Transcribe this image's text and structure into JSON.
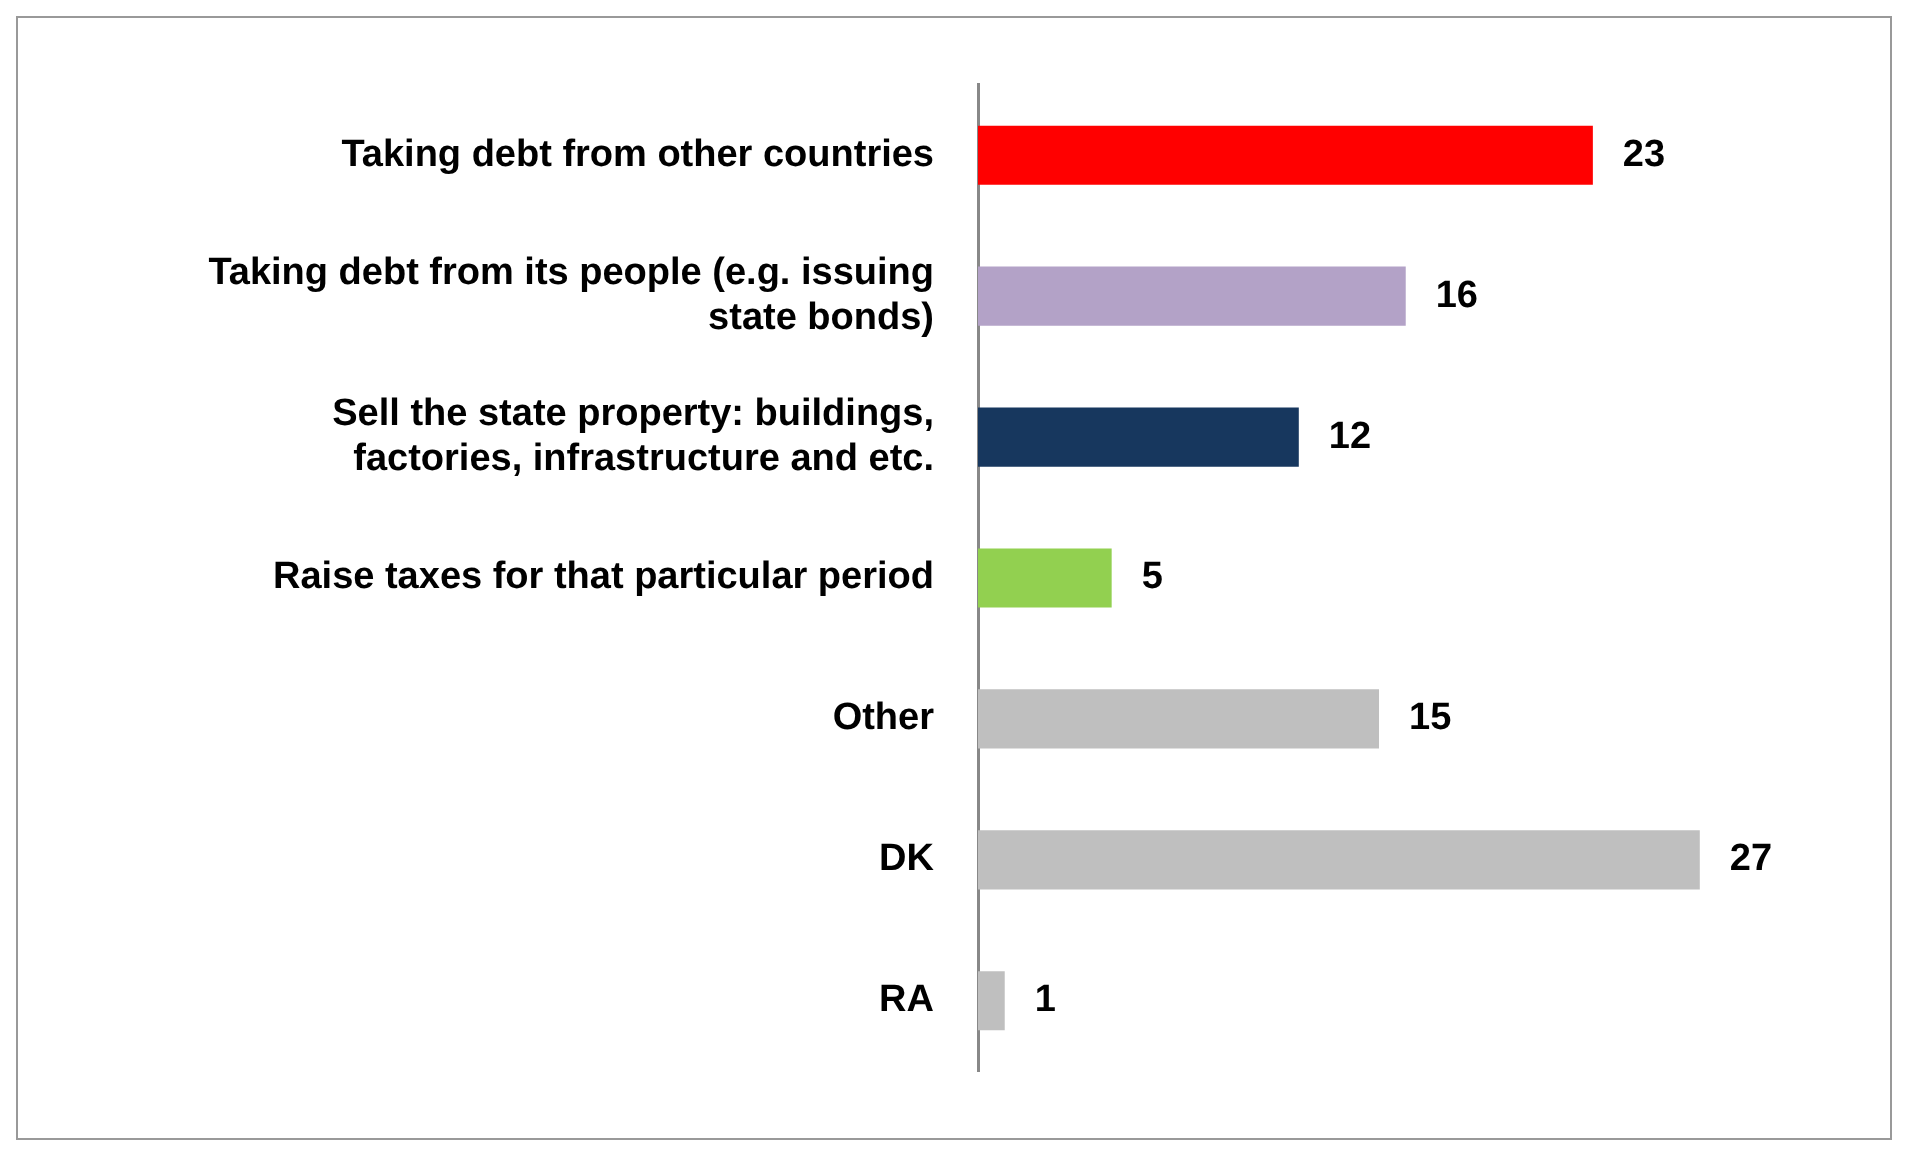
{
  "chart_data": {
    "type": "bar",
    "orientation": "horizontal",
    "categories": [
      "Taking debt from other countries",
      "Taking debt from its people (e.g. issuing state bonds)",
      "Sell the state property: buildings, factories, infrastructure and etc.",
      "Raise taxes for that particular period",
      "Other",
      "DK",
      "RA"
    ],
    "values": [
      23,
      16,
      12,
      5,
      15,
      27,
      1
    ],
    "colors": [
      "#ff0000",
      "#b3a2c7",
      "#17375e",
      "#92d050",
      "#bfbfbf",
      "#bfbfbf",
      "#bfbfbf"
    ],
    "data_labels": true,
    "legend": false
  }
}
